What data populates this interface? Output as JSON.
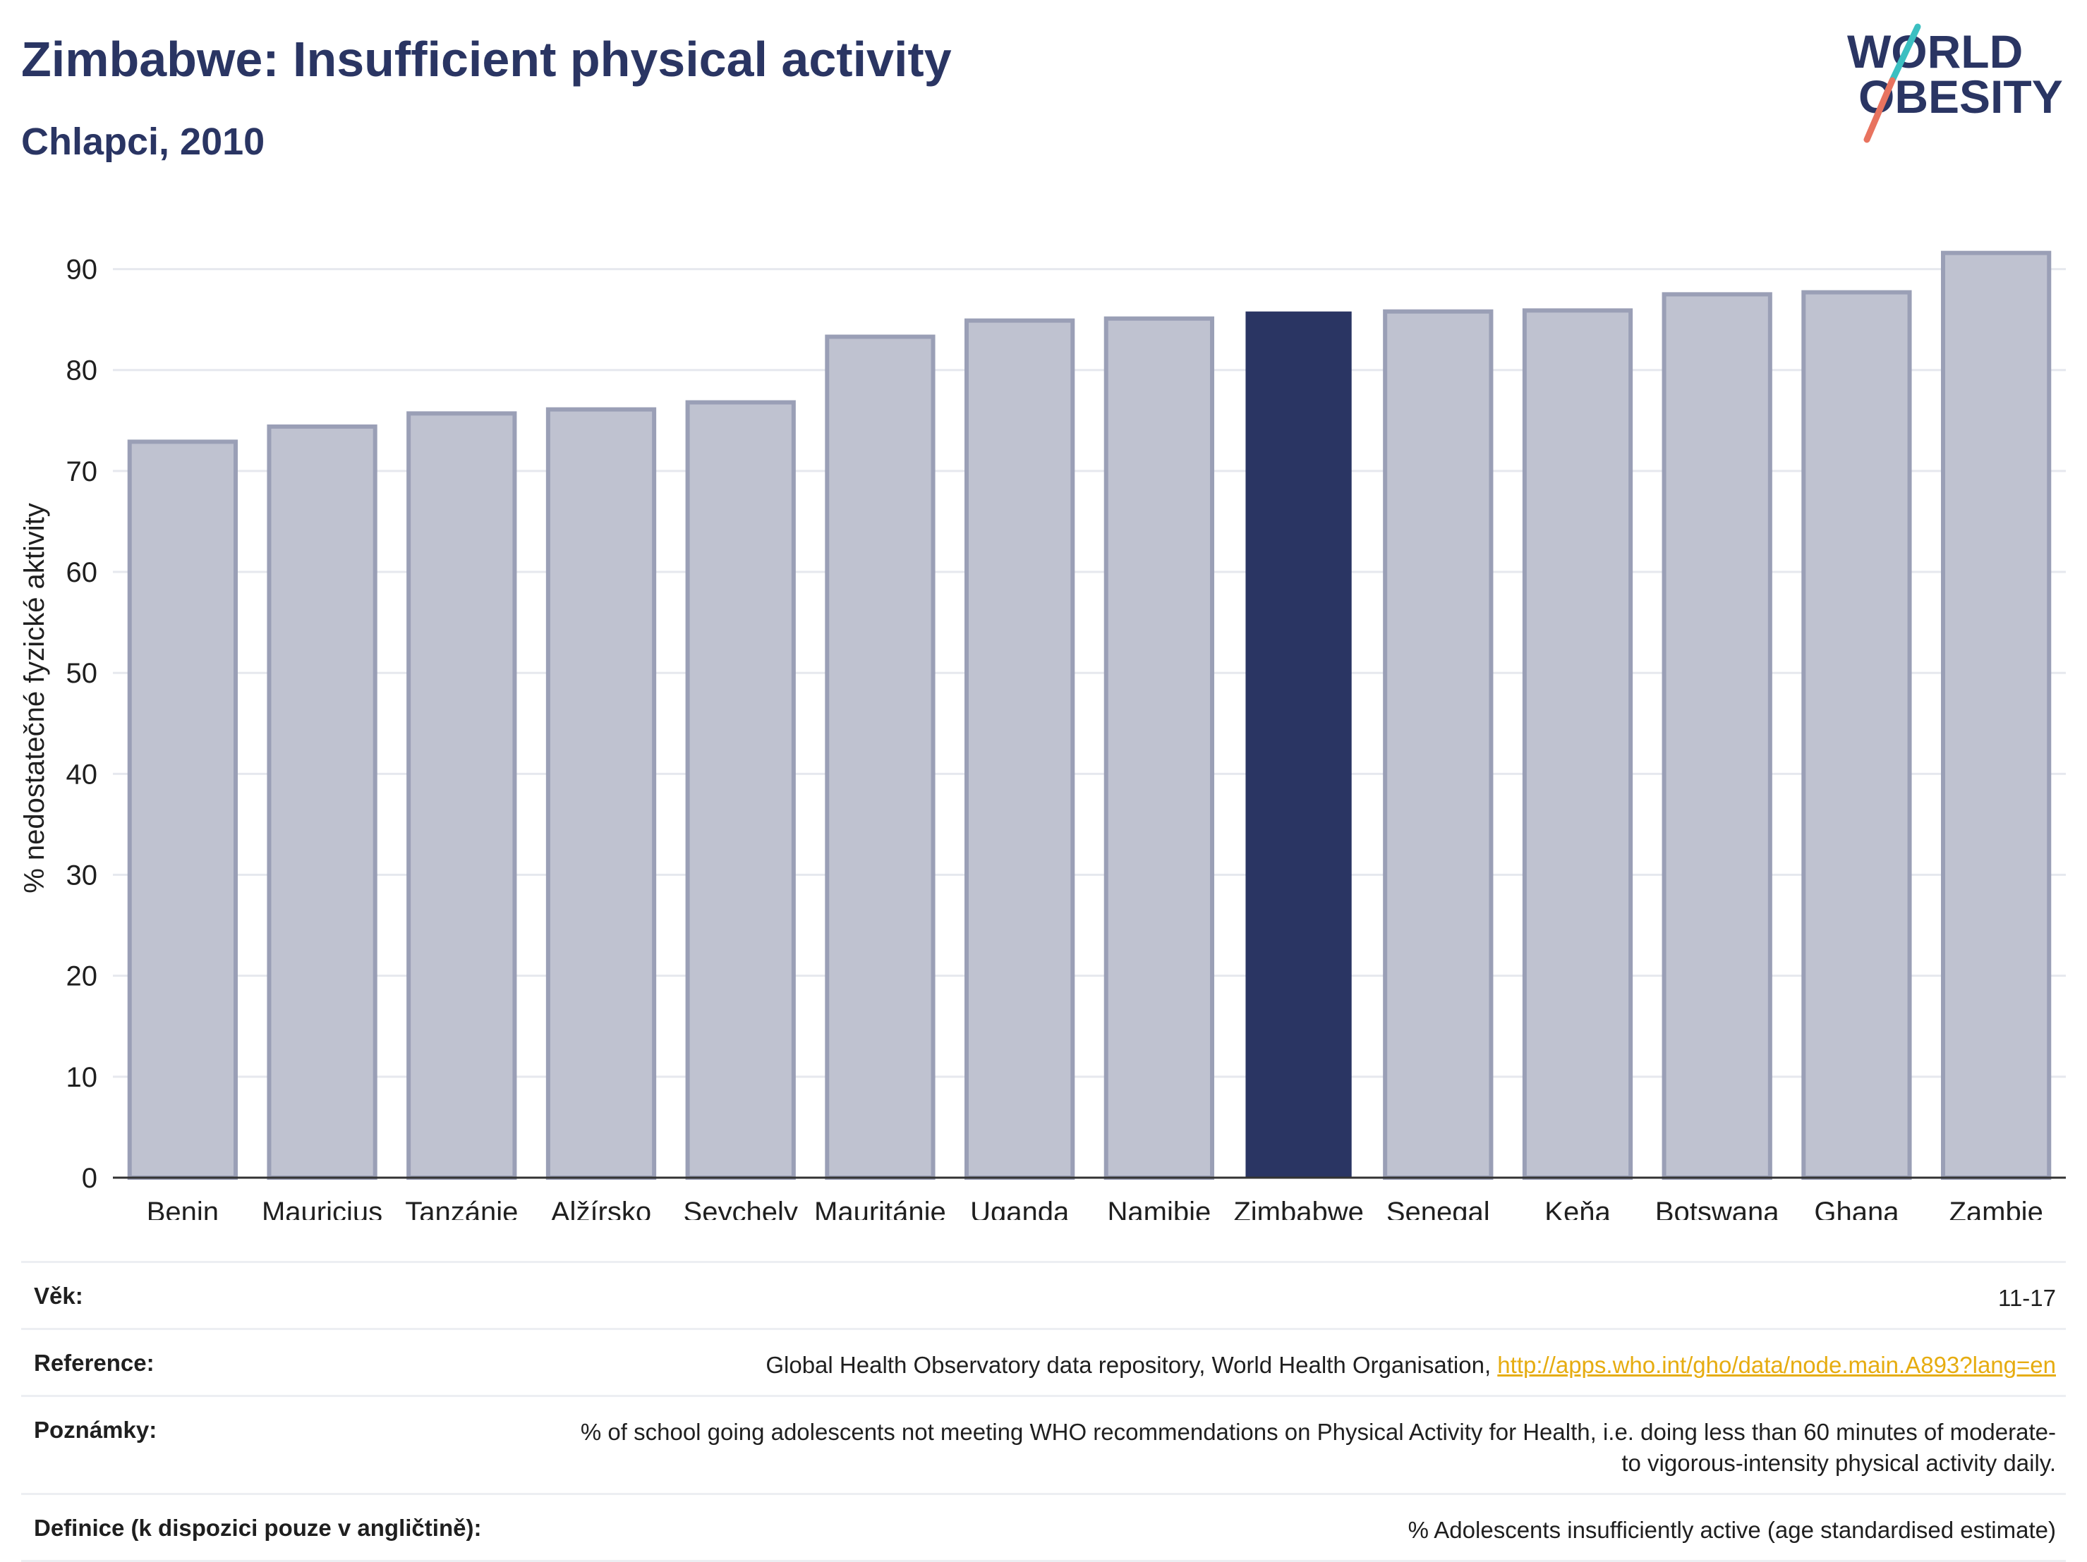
{
  "header": {
    "title": "Zimbabwe: Insufficient physical activity",
    "subtitle": "Chlapci, 2010"
  },
  "logo": {
    "line1": "WORLD",
    "line2": "OBESITY",
    "colors": {
      "text": "#2a3563",
      "slash_teal": "#3bbfc1",
      "slash_coral": "#e8735f"
    }
  },
  "chart_data": {
    "type": "bar",
    "title": "",
    "xlabel": "",
    "ylabel": "% nedostatečné fyzické aktivity",
    "ylim": [
      0,
      95
    ],
    "yticks": [
      0,
      10,
      20,
      30,
      40,
      50,
      60,
      70,
      80,
      90
    ],
    "grid": true,
    "legend": "none",
    "categories": [
      "Benin",
      "Mauricius",
      "Tanzánie",
      "Alžírsko",
      "Seychely",
      "Mauritánie",
      "Uganda",
      "Namibie",
      "Zimbabwe",
      "Senegal",
      "Keňa",
      "Botswana",
      "Ghana",
      "Zambie"
    ],
    "values": [
      72.9,
      74.4,
      75.7,
      76.1,
      76.8,
      83.3,
      84.9,
      85.1,
      85.8,
      85.8,
      85.9,
      87.5,
      87.7,
      91.6
    ],
    "highlight": "Zimbabwe",
    "colors": {
      "bar": "#bfc2d0",
      "bar_border": "#9a9fb6",
      "highlight": "#2a3563",
      "grid": "#e6e8ee",
      "axis": "#333333"
    }
  },
  "meta": {
    "rows": [
      {
        "label": "Věk:",
        "value": "11-17"
      },
      {
        "label": "Reference:",
        "value": "Global Health Observatory data repository, World Health Organisation,",
        "link": "http://apps.who.int/gho/data/node.main.A893?lang=en"
      },
      {
        "label": "Poznámky:",
        "value": "% of school going adolescents not meeting WHO recommendations on Physical Activity for Health, i.e. doing less than 60 minutes of moderate- to vigorous-intensity physical activity daily."
      },
      {
        "label": "Definice (k dispozici pouze v angličtině):",
        "value": "% Adolescents insufficiently active (age standardised estimate)"
      }
    ]
  }
}
